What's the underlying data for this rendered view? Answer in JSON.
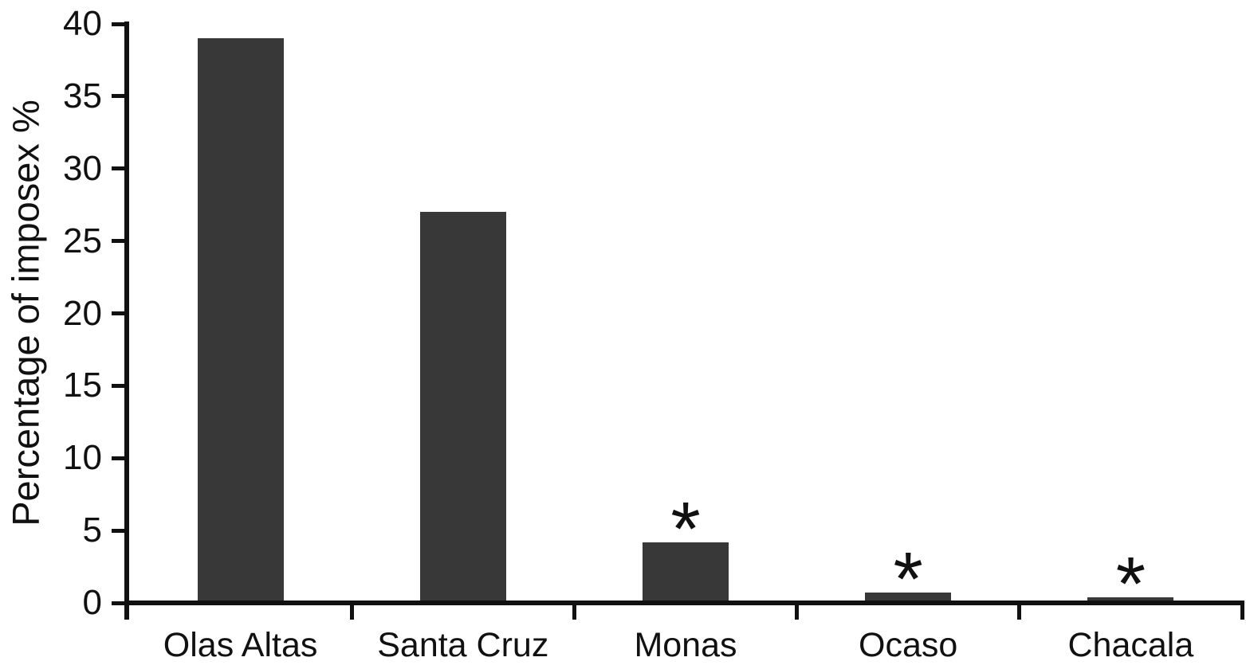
{
  "chart_data": {
    "type": "bar",
    "title": "",
    "xlabel": "",
    "ylabel": "Percentage of imposex %",
    "categories": [
      "Olas Altas",
      "Santa Cruz",
      "Monas",
      "Ocaso",
      "Chacala"
    ],
    "values": [
      39,
      27,
      4.2,
      0.7,
      0.4
    ],
    "significant": [
      false,
      false,
      true,
      true,
      true
    ],
    "significance_marker": "*",
    "yticks": [
      0,
      5,
      10,
      15,
      20,
      25,
      30,
      35,
      40
    ],
    "ylim": [
      0,
      40
    ],
    "grid": false,
    "legend": false,
    "bar_color": "#383838",
    "axis_color": "#111111",
    "background_color": "#ffffff"
  }
}
